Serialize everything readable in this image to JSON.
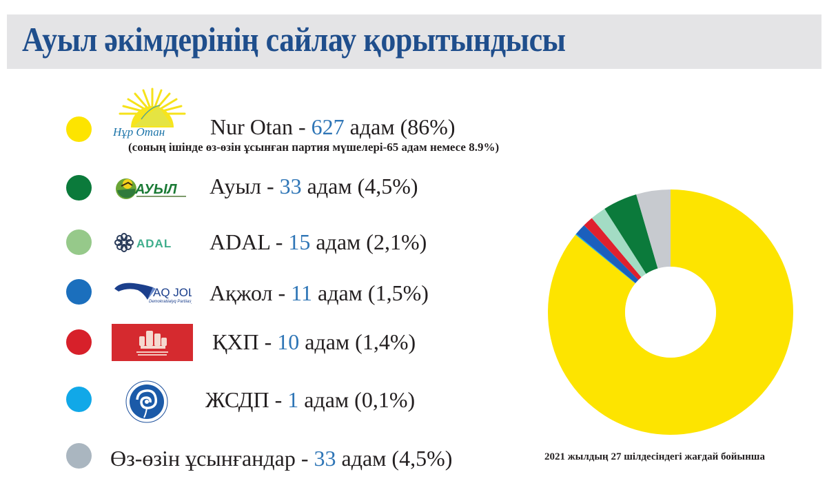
{
  "header": {
    "title": "Ауыл әкімдерінің сайлау қорытындысы"
  },
  "legend": [
    {
      "party": "Nur Otan",
      "logo": "nur-otan-logo",
      "color": "#fde400",
      "sep": " - ",
      "count": "627",
      "unit": " адам",
      "pct": " (86%)",
      "note": "(соның ішінде өз-өзін ұсынған партия мүшелері-65 адам немесе 8.9%)"
    },
    {
      "party": "Ауыл",
      "logo": "auyl-logo",
      "color": "#0b7a3b",
      "sep": " - ",
      "count": "33",
      "unit": " адам",
      "pct": " (4,5%)"
    },
    {
      "party": "ADAL",
      "logo": "adal-logo",
      "color": "#96c98a",
      "sep": " - ",
      "count": "15",
      "unit": " адам",
      "pct": " (2,1%)"
    },
    {
      "party": "Ақжол",
      "logo": "aqjol-logo",
      "color": "#1b6fbd",
      "sep": " - ",
      "count": "11",
      "unit": " адам",
      "pct": " (1,5%)"
    },
    {
      "party": "ҚХП",
      "logo": "qhp-logo",
      "color": "#d7202a",
      "sep": " - ",
      "count": "10",
      "unit": " адам",
      "pct": " (1,4%)"
    },
    {
      "party": "ЖСДП",
      "logo": "zhsdp-logo",
      "color": "#11a8e8",
      "sep": " - ",
      "count": "1",
      "unit": " адам",
      "pct": " (0,1%)"
    },
    {
      "party": "Өз-өзін ұсынғандар",
      "logo": "",
      "color": "#aab6c0",
      "sep": " - ",
      "count": "33",
      "unit": " адам",
      "pct": " (4,5%)"
    }
  ],
  "logos": {
    "adal_text": "ADAL",
    "auyl_text": "АУЫЛ",
    "aqjol_text": "AQ JOL",
    "aqjol_sub": "Demokratiialyq Partiiasy",
    "nurotan_text": "Нұр Отан"
  },
  "footnote": "2021 жылдың 27 шілдесіндегі жағдай бойынша",
  "chart_data": {
    "type": "pie",
    "title": "Ауыл әкімдерінің сайлау қорытындысы",
    "subtitle": "2021 жылдың 27 шілдесіндегі жағдай бойынша",
    "donut": true,
    "categories": [
      "Nur Otan",
      "Ауыл",
      "ADAL",
      "Ақжол",
      "ҚХП",
      "ЖСДП",
      "Өз-өзін ұсынғандар"
    ],
    "values": [
      627,
      33,
      15,
      11,
      10,
      1,
      33
    ],
    "percentages": [
      86,
      4.5,
      2.1,
      1.5,
      1.4,
      0.1,
      4.5
    ],
    "colors": [
      "#fde400",
      "#0b7a3b",
      "#a3dcc4",
      "#1b5fbd",
      "#e0202e",
      "#11a8e8",
      "#c7cacf"
    ],
    "slice_order_clockwise_from_top": [
      "Nur Otan",
      "ЖСДП",
      "Ақжол",
      "ҚХП",
      "ADAL",
      "Ауыл",
      "Өз-өзін ұсынғандар"
    ],
    "legend_position": "left",
    "unit": "адам"
  }
}
